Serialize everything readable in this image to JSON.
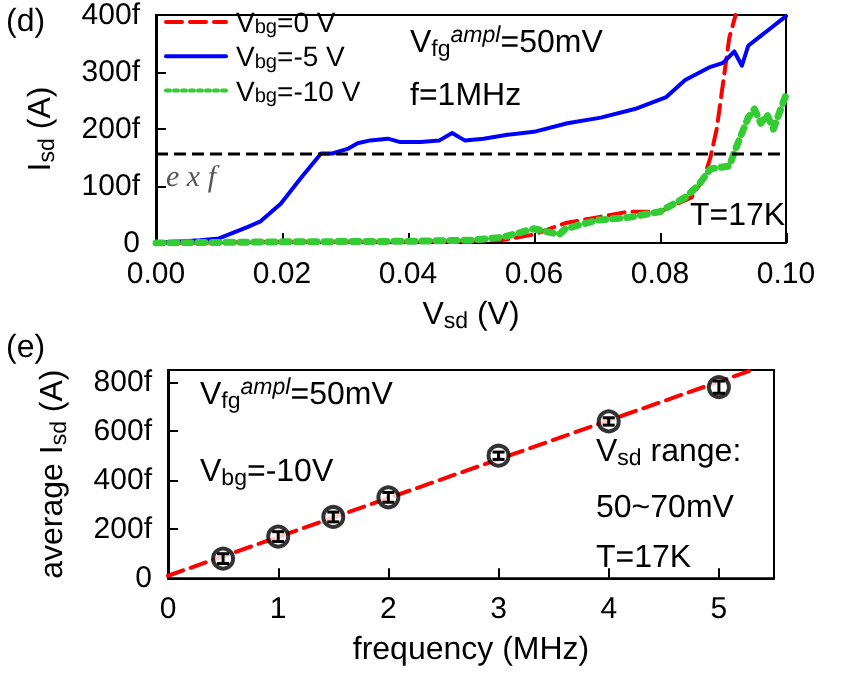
{
  "chart_data": [
    {
      "type": "line",
      "xlabel": "V$_{sd}$ (V)",
      "ylabel": "I$_{sd}$ (A)",
      "xlim": [
        0,
        0.1
      ],
      "xticks": [
        {
          "value": 0,
          "label": "0.00"
        },
        0.02,
        0.04,
        0.06,
        0.08,
        {
          "value": 0.1,
          "label": "0.10"
        }
      ],
      "ylim": [
        0,
        400
      ],
      "yticks": [
        0,
        {
          "value": 100,
          "label": "100f"
        },
        {
          "value": 200,
          "label": "200f"
        },
        {
          "value": 300,
          "label": "300f"
        },
        {
          "value": 400,
          "label": "400f"
        }
      ],
      "grid": false,
      "legend": "top left",
      "marker": "none",
      "series": [
        {
          "name": "V$_{bg}$=0 V",
          "color": "#ff0000",
          "line_style": "dashed",
          "x": [
            0,
            0.02,
            0.04,
            0.05,
            0.055,
            0.06,
            0.065,
            0.07,
            0.075,
            0.08,
            0.085,
            0.087,
            0.088,
            0.089,
            0.09,
            0.091,
            0.092
          ],
          "values": [
            0,
            2,
            2,
            4,
            5,
            15,
            35,
            45,
            55,
            55,
            80,
            115,
            150,
            200,
            280,
            360,
            400
          ]
        },
        {
          "name": "V$_{bg}$=-5 V",
          "color": "#0000ff",
          "line_style": "solid",
          "x": [
            0,
            0.007,
            0.01,
            0.0145,
            0.0166,
            0.0198,
            0.023,
            0.0262,
            0.028,
            0.0304,
            0.032,
            0.034,
            0.0368,
            0.0388,
            0.042,
            0.045,
            0.047,
            0.049,
            0.052,
            0.0558,
            0.06,
            0.0653,
            0.0706,
            0.076,
            0.081,
            0.084,
            0.0878,
            0.09,
            0.0918,
            0.093,
            0.094,
            0.097,
            0.1
          ],
          "values": [
            0,
            5,
            8,
            28,
            38,
            69,
            114,
            157,
            157,
            165,
            175,
            180,
            183,
            177,
            177,
            180,
            193,
            180,
            183,
            190,
            195,
            210,
            220,
            235,
            256,
            286,
            308,
            316,
            336,
            311,
            346,
            372,
            398
          ]
        },
        {
          "name": "V$_{bg}$=-10 V",
          "color": "#33cc33",
          "line_style": "dotted",
          "x": [
            0,
            0.02,
            0.04,
            0.05,
            0.055,
            0.06,
            0.064,
            0.065,
            0.07,
            0.075,
            0.08,
            0.084,
            0.086,
            0.088,
            0.091,
            0.092,
            0.094,
            0.095,
            0.096,
            0.097,
            0.098,
            0.1
          ],
          "values": [
            0,
            2,
            3,
            5,
            10,
            25,
            15,
            25,
            40,
            45,
            55,
            80,
            100,
            130,
            135,
            165,
            220,
            235,
            210,
            225,
            200,
            260
          ]
        }
      ],
      "ref_lines": [
        {
          "axis": "y",
          "value": 158,
          "label": "e x f",
          "color": "#000000",
          "line_style": "dashed"
        }
      ],
      "annotations": [
        "(d)",
        "V$_{fg}$$^{ampl}$=50mV",
        "f=1MHz",
        "T=17K"
      ]
    },
    {
      "type": "scatter",
      "xlabel": "frequency (MHz)",
      "ylabel": "average I$_{sd}$ (A)",
      "xlim": [
        0,
        5.5
      ],
      "xticks": [
        0,
        1,
        2,
        3,
        4,
        5
      ],
      "ylim": [
        0,
        850
      ],
      "yticks": [
        0,
        {
          "value": 200,
          "label": "200f"
        },
        {
          "value": 400,
          "label": "400f"
        },
        {
          "value": 600,
          "label": "600f"
        },
        {
          "value": 800,
          "label": "800f"
        }
      ],
      "grid": false,
      "legend": false,
      "series": [
        {
          "type": "line",
          "color": "#ff0000",
          "line_style": "dashed",
          "marker": "none",
          "x": [
            0,
            5.3
          ],
          "values": [
            10,
            850
          ]
        },
        {
          "type": "scatter",
          "color": "#000000",
          "marker": "circle",
          "x": [
            0.5,
            1,
            1.5,
            2,
            3,
            4,
            5
          ],
          "values": [
            80,
            170,
            250,
            330,
            500,
            640,
            780
          ],
          "errors": [
            20,
            20,
            20,
            20,
            15,
            15,
            25
          ]
        }
      ],
      "annotations": [
        "(e)",
        "V$_{fg}$$^{ampl}$=50mV",
        "V$_{bg}$=-10V",
        "V$_{sd}$ range:",
        "50~70mV",
        "T=17K"
      ]
    }
  ]
}
